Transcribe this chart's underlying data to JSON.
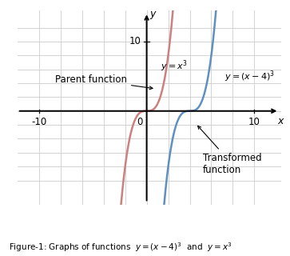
{
  "xlim": [
    -12,
    12.5
  ],
  "ylim": [
    -13.5,
    14.5
  ],
  "parent_color": "#cd8080",
  "transformed_color": "#6090c0",
  "grid_color": "#cccccc",
  "background_color": "#ffffff",
  "xlabel": "x",
  "ylabel": "y",
  "tick_label_fontsize": 8.5,
  "annotation_fontsize": 8.5
}
